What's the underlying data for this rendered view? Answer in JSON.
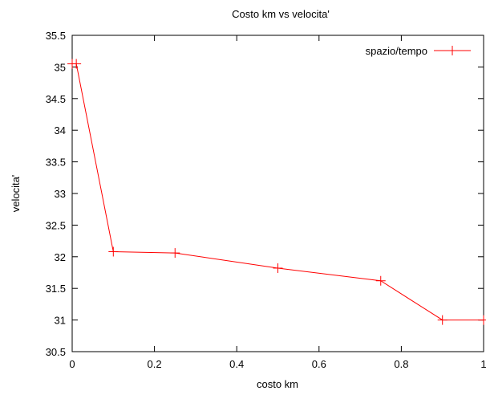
{
  "chart_data": {
    "type": "line",
    "title": "Costo km vs velocita'",
    "xlabel": "costo km",
    "ylabel": "velocita'",
    "xlim": [
      0,
      1
    ],
    "ylim": [
      30.5,
      35.5
    ],
    "xticks": [
      0,
      0.2,
      0.4,
      0.6,
      0.8,
      1
    ],
    "xtick_labels": [
      "0",
      "0.2",
      "0.4",
      "0.6",
      "0.8",
      "1"
    ],
    "yticks": [
      30.5,
      31,
      31.5,
      32,
      32.5,
      33,
      33.5,
      34,
      34.5,
      35,
      35.5
    ],
    "ytick_labels": [
      "30.5",
      "31",
      "31.5",
      "32",
      "32.5",
      "33",
      "33.5",
      "34",
      "34.5",
      "35",
      "35.5"
    ],
    "grid": false,
    "legend": "top-right",
    "series": [
      {
        "name": "spazio/tempo",
        "color": "#ff0000",
        "marker": "plus",
        "x": [
          0,
          0.01,
          0.1,
          0.25,
          0.5,
          0.75,
          0.9,
          1.0
        ],
        "y": [
          35.05,
          35.05,
          32.08,
          32.06,
          31.82,
          31.62,
          31.0,
          31.0
        ]
      }
    ]
  }
}
